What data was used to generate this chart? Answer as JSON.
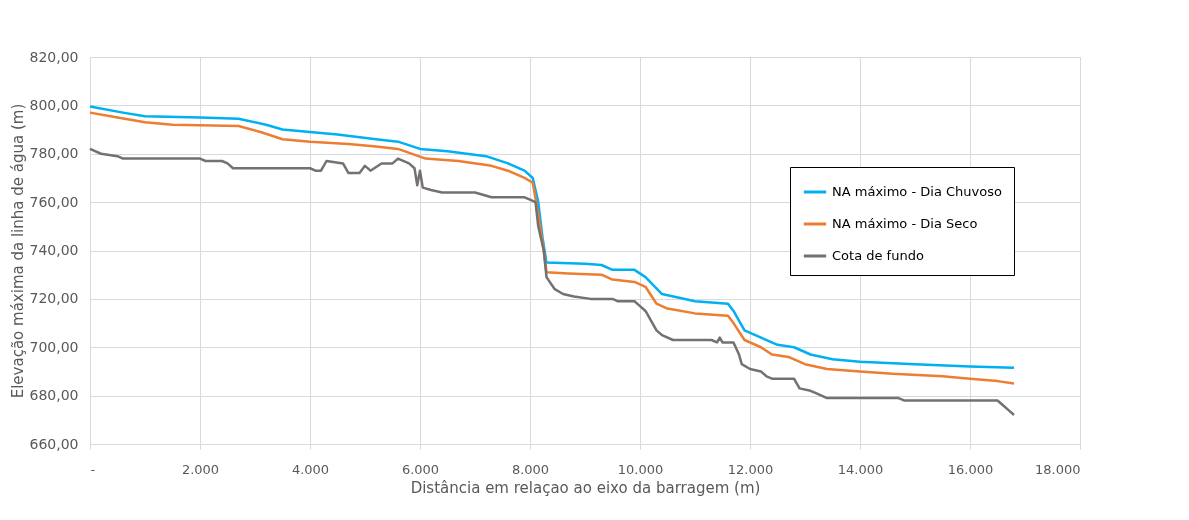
{
  "chart_data": {
    "type": "line",
    "xlabel": "Distância em relaçao ao eixo da barragem (m)",
    "ylabel": "Elevação máxima da linha de água (m)",
    "xlim": [
      0,
      18000
    ],
    "xticks": [
      {
        "value": 0,
        "label": "-"
      },
      {
        "value": 2000,
        "label": "2.000"
      },
      {
        "value": 4000,
        "label": "4.000"
      },
      {
        "value": 6000,
        "label": "6.000"
      },
      {
        "value": 8000,
        "label": "8.000"
      },
      {
        "value": 10000,
        "label": "10.000"
      },
      {
        "value": 12000,
        "label": "12.000"
      },
      {
        "value": 14000,
        "label": "14.000"
      },
      {
        "value": 16000,
        "label": "16.000"
      },
      {
        "value": 18000,
        "label": "18.000"
      }
    ],
    "ylim": [
      660,
      820
    ],
    "yticks": [
      {
        "value": 660,
        "label": "660,00"
      },
      {
        "value": 680,
        "label": "680,00"
      },
      {
        "value": 700,
        "label": "700,00"
      },
      {
        "value": 720,
        "label": "720,00"
      },
      {
        "value": 740,
        "label": "740,00"
      },
      {
        "value": 760,
        "label": "760,00"
      },
      {
        "value": 780,
        "label": "780,00"
      },
      {
        "value": 800,
        "label": "800,00"
      },
      {
        "value": 820,
        "label": "820,00"
      }
    ],
    "grid": true,
    "legend": "right",
    "marker": "none",
    "line_style": "solid",
    "series": [
      {
        "name": "NA máximo - Dia Chuvoso",
        "color": "#00b0f0",
        "x": [
          0,
          600,
          1000,
          2000,
          2700,
          3200,
          3500,
          4000,
          4500,
          5200,
          5600,
          6000,
          6500,
          7200,
          7600,
          7900,
          8050,
          8150,
          8230,
          8300,
          9000,
          9300,
          9500,
          9900,
          10100,
          10400,
          11000,
          11600,
          11700,
          11900,
          12200,
          12500,
          12800,
          13100,
          13500,
          14000,
          15000,
          16000,
          16800
        ],
        "values": [
          799.5,
          797,
          795.5,
          795,
          794.5,
          792,
          790,
          789,
          788,
          786,
          785,
          782,
          781,
          779,
          776,
          773,
          770,
          760,
          745,
          735,
          734.5,
          734,
          732,
          732,
          729,
          722,
          719,
          718,
          715,
          707,
          704,
          701,
          700,
          697,
          695,
          694,
          693,
          692,
          691.5
        ]
      },
      {
        "name": "NA máximo - Dia Seco",
        "color": "#ed7d31",
        "x": [
          0,
          500,
          1000,
          1500,
          2700,
          3100,
          3500,
          4000,
          4700,
          5200,
          5600,
          6100,
          6700,
          7300,
          7600,
          7900,
          8050,
          8150,
          8250,
          8300,
          8700,
          9300,
          9500,
          9900,
          10100,
          10300,
          10500,
          11000,
          11600,
          11700,
          11900,
          12200,
          12400,
          12700,
          13000,
          13400,
          14000,
          14600,
          15500,
          16000,
          16500,
          16800
        ],
        "values": [
          797,
          795,
          793,
          792,
          791.5,
          789,
          786,
          785,
          784,
          783,
          782,
          778,
          777,
          775,
          773,
          770,
          768,
          755,
          740,
          731,
          730.5,
          730,
          728,
          727,
          725,
          718,
          716,
          714,
          713,
          710,
          703,
          700,
          697,
          696,
          693,
          691,
          690,
          689,
          688,
          687,
          686,
          685
        ]
      },
      {
        "name": "Cota de fundo",
        "color": "#767171",
        "x": [
          0,
          200,
          500,
          600,
          2000,
          2100,
          2400,
          2500,
          2600,
          4000,
          4100,
          4200,
          4300,
          4600,
          4700,
          4900,
          5000,
          5100,
          5300,
          5500,
          5600,
          5800,
          5900,
          5950,
          6000,
          6050,
          6200,
          6400,
          7000,
          7300,
          7900,
          8000,
          8100,
          8150,
          8250,
          8300,
          8450,
          8600,
          8800,
          9100,
          9500,
          9600,
          9900,
          10000,
          10100,
          10300,
          10400,
          10600,
          11300,
          11400,
          11450,
          11500,
          11700,
          11800,
          11850,
          12000,
          12200,
          12300,
          12400,
          12800,
          12900,
          13100,
          13200,
          13400,
          14700,
          14800,
          16500,
          16600,
          16700,
          16800
        ],
        "values": [
          782,
          780,
          779,
          778,
          778,
          777,
          777,
          776,
          774,
          774,
          773,
          773,
          777,
          776,
          772,
          772,
          775,
          773,
          776,
          776,
          778,
          776,
          774,
          767,
          773,
          766,
          765,
          764,
          764,
          762,
          762,
          761,
          760,
          750,
          740,
          729,
          724,
          722,
          721,
          720,
          720,
          719,
          719,
          717,
          715,
          707,
          705,
          703,
          703,
          702,
          704,
          702,
          702,
          697,
          693,
          691,
          690,
          688,
          687,
          687,
          683,
          682,
          681,
          679,
          679,
          678,
          678,
          676,
          674,
          672
        ]
      }
    ]
  }
}
